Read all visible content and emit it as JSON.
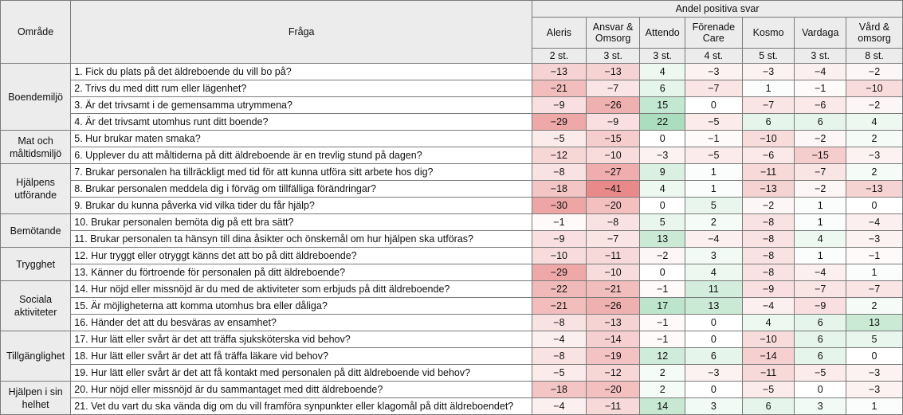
{
  "header": {
    "group_label": "Andel positiva svar",
    "area_label": "Område",
    "question_label": "Fråga",
    "providers": [
      {
        "name": "Aleris",
        "count": "2 st."
      },
      {
        "name": "Ansvar & Omsorg",
        "count": "3 st."
      },
      {
        "name": "Attendo",
        "count": "3 st."
      },
      {
        "name": "Förenade Care",
        "count": "4 st."
      },
      {
        "name": "Kosmo",
        "count": "5 st."
      },
      {
        "name": "Vardaga",
        "count": "3 st."
      },
      {
        "name": "Vård & omsorg",
        "count": "8 st."
      }
    ]
  },
  "colors": {
    "header_bg": "#ececec",
    "border": "#7a7a7a",
    "negative": "#e88a8a",
    "positive": "#8fd3a8"
  },
  "chart_data": {
    "type": "table",
    "title": "Andel positiva svar",
    "columns": [
      "Aleris",
      "Ansvar & Omsorg",
      "Attendo",
      "Förenade Care",
      "Kosmo",
      "Vardaga",
      "Vård & omsorg"
    ],
    "groups": [
      {
        "area": "Boendemiljö",
        "rows": [
          {
            "question": "1. Fick du plats på det äldreboende du vill bo på?",
            "values": [
              -13,
              -13,
              4,
              -3,
              -3,
              -4,
              -2
            ]
          },
          {
            "question": "2. Trivs du med ditt rum eller lägenhet?",
            "values": [
              -21,
              -7,
              6,
              -7,
              1,
              -1,
              -10
            ]
          },
          {
            "question": "3. Är det trivsamt i de gemensamma utrymmena?",
            "values": [
              -9,
              -26,
              15,
              0,
              -7,
              -6,
              -2
            ]
          },
          {
            "question": "4. Är det trivsamt utomhus runt ditt boende?",
            "values": [
              -29,
              -9,
              22,
              -5,
              6,
              6,
              4
            ]
          }
        ]
      },
      {
        "area": "Mat och måltidsmiljö",
        "rows": [
          {
            "question": "5. Hur brukar maten smaka?",
            "values": [
              -5,
              -15,
              0,
              -1,
              -10,
              -2,
              2
            ]
          },
          {
            "question": "6. Upplever du att måltiderna på ditt äldreboende är en trevlig stund på dagen?",
            "values": [
              -12,
              -10,
              -3,
              -5,
              -6,
              -15,
              -3
            ]
          }
        ]
      },
      {
        "area": "Hjälpens utförande",
        "rows": [
          {
            "question": "7. Brukar personalen ha tillräckligt med tid för att kunna utföra sitt arbete hos dig?",
            "values": [
              -8,
              -27,
              9,
              1,
              -11,
              -7,
              2
            ]
          },
          {
            "question": "8. Brukar personalen meddela dig i förväg om tillfälliga förändringar?",
            "values": [
              -18,
              -41,
              4,
              1,
              -13,
              -2,
              -13
            ]
          },
          {
            "question": "9. Brukar du kunna påverka vid vilka tider du får hjälp?",
            "values": [
              -30,
              -20,
              0,
              5,
              -2,
              1,
              0
            ]
          }
        ]
      },
      {
        "area": "Bemötande",
        "rows": [
          {
            "question": "10. Brukar personalen bemöta dig på ett bra sätt?",
            "values": [
              -1,
              -8,
              5,
              2,
              -8,
              1,
              -4
            ]
          },
          {
            "question": "11. Brukar personalen ta hänsyn till dina åsikter och önskemål om hur hjälpen ska utföras?",
            "values": [
              -9,
              -7,
              13,
              -4,
              -8,
              4,
              -3
            ]
          }
        ]
      },
      {
        "area": "Trygghet",
        "rows": [
          {
            "question": "12. Hur tryggt eller otryggt känns det att bo på ditt äldreboende?",
            "values": [
              -10,
              -11,
              -2,
              3,
              -8,
              1,
              -1
            ]
          },
          {
            "question": "13. Känner du förtroende för personalen på ditt äldreboende?",
            "values": [
              -29,
              -10,
              0,
              4,
              -8,
              -4,
              1
            ]
          }
        ]
      },
      {
        "area": "Sociala aktiviteter",
        "rows": [
          {
            "question": "14. Hur nöjd eller missnöjd är du med de aktiviteter som erbjuds på ditt äldreboende?",
            "values": [
              -22,
              -21,
              -1,
              11,
              -9,
              -7,
              -7
            ]
          },
          {
            "question": "15. Är möjligheterna att komma utomhus bra eller dåliga?",
            "values": [
              -21,
              -26,
              17,
              13,
              -4,
              -9,
              2
            ]
          },
          {
            "question": "16. Händer det att du besväras av ensamhet?",
            "values": [
              -8,
              -13,
              -1,
              0,
              4,
              6,
              13
            ]
          }
        ]
      },
      {
        "area": "Tillgänglighet",
        "rows": [
          {
            "question": "17. Hur lätt eller svårt är det att träffa sjuksköterska vid behov?",
            "values": [
              -4,
              -14,
              -1,
              0,
              -10,
              6,
              5
            ]
          },
          {
            "question": "18. Hur lätt eller svårt är det att få träffa läkare vid behov?",
            "values": [
              -8,
              -19,
              12,
              6,
              -14,
              6,
              0
            ]
          },
          {
            "question": "19. Hur lätt eller svårt är det att få kontakt med personalen på ditt äldreboende vid behov?",
            "values": [
              -5,
              -12,
              2,
              -3,
              -11,
              -5,
              -3
            ]
          }
        ]
      },
      {
        "area": "Hjälpen i sin helhet",
        "rows": [
          {
            "question": "20. Hur nöjd eller missnöjd är du sammantaget med ditt äldreboende?",
            "values": [
              -18,
              -20,
              2,
              0,
              -5,
              0,
              -3
            ]
          },
          {
            "question": "21. Vet du vart du ska vända dig om du vill framföra synpunkter eller klagomål på ditt äldreboendet?",
            "values": [
              -4,
              -11,
              14,
              3,
              6,
              3,
              1
            ]
          }
        ]
      }
    ]
  }
}
